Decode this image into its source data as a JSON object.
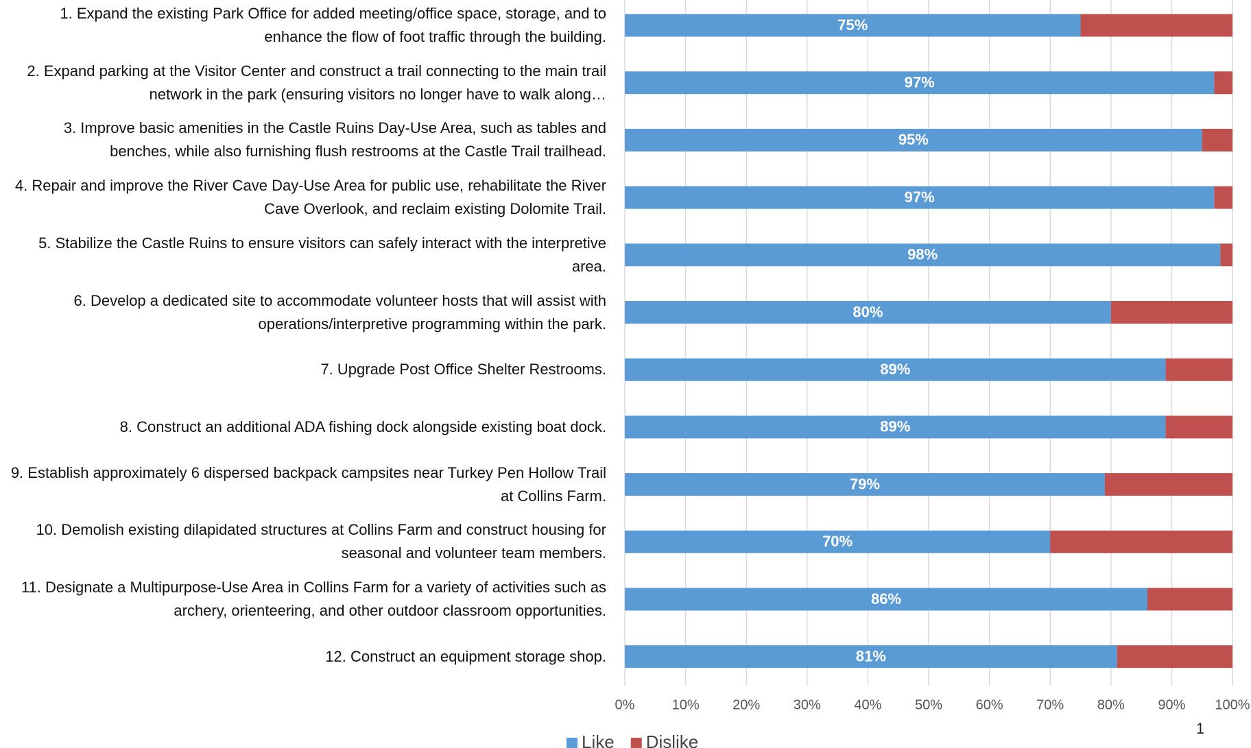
{
  "chart_data": {
    "type": "stacked_bar_horizontal",
    "categories": [
      "1. Expand the existing Park Office for added meeting/office space, storage, and to enhance the flow of foot traffic through the building.",
      "2. Expand parking at the Visitor Center and construct a trail connecting to the main trail network in the park (ensuring visitors no longer have to walk along…",
      "3. Improve basic amenities in the Castle Ruins Day-Use Area, such as tables and benches, while also furnishing flush restrooms at the Castle Trail trailhead.",
      "4. Repair and improve the River Cave Day-Use Area for public use, rehabilitate the River Cave Overlook, and reclaim existing Dolomite Trail.",
      "5. Stabilize the Castle Ruins to ensure visitors can safely interact with the interpretive area.",
      "6. Develop a dedicated site to accommodate volunteer hosts that will assist with operations/interpretive programming within the park.",
      "7. Upgrade Post Office Shelter Restrooms.",
      "8. Construct an additional ADA fishing dock alongside existing boat dock.",
      "9. Establish approximately 6 dispersed backpack campsites near Turkey Pen Hollow Trail at Collins Farm.",
      "10. Demolish existing dilapidated structures at Collins Farm and construct housing for seasonal and volunteer team members.",
      "11. Designate a Multipurpose-Use Area in Collins Farm for a variety of activities such as archery, orienteering, and other outdoor classroom opportunities.",
      "12. Construct an equipment storage shop."
    ],
    "series": [
      {
        "name": "Like",
        "color": "#5b9bd5",
        "values": [
          75,
          97,
          95,
          97,
          98,
          80,
          89,
          89,
          79,
          70,
          86,
          81
        ],
        "value_labels": [
          "75%",
          "97%",
          "95%",
          "97%",
          "98%",
          "80%",
          "89%",
          "89%",
          "79%",
          "70%",
          "86%",
          "81%"
        ]
      },
      {
        "name": "Dislike",
        "color": "#c0504d",
        "values": [
          25,
          3,
          5,
          3,
          2,
          20,
          11,
          11,
          21,
          30,
          14,
          19
        ]
      }
    ],
    "xlim": [
      0,
      100
    ],
    "xticks": [
      {
        "value": 0,
        "label": "0%"
      },
      {
        "value": 10,
        "label": "10%"
      },
      {
        "value": 20,
        "label": "20%"
      },
      {
        "value": 30,
        "label": "30%"
      },
      {
        "value": 40,
        "label": "40%"
      },
      {
        "value": 50,
        "label": "50%"
      },
      {
        "value": 60,
        "label": "60%"
      },
      {
        "value": 70,
        "label": "70%"
      },
      {
        "value": 80,
        "label": "80%"
      },
      {
        "value": 90,
        "label": "90%"
      },
      {
        "value": 100,
        "label": "100%"
      }
    ],
    "grid": true,
    "legend": "bottom"
  },
  "page_number": "1"
}
